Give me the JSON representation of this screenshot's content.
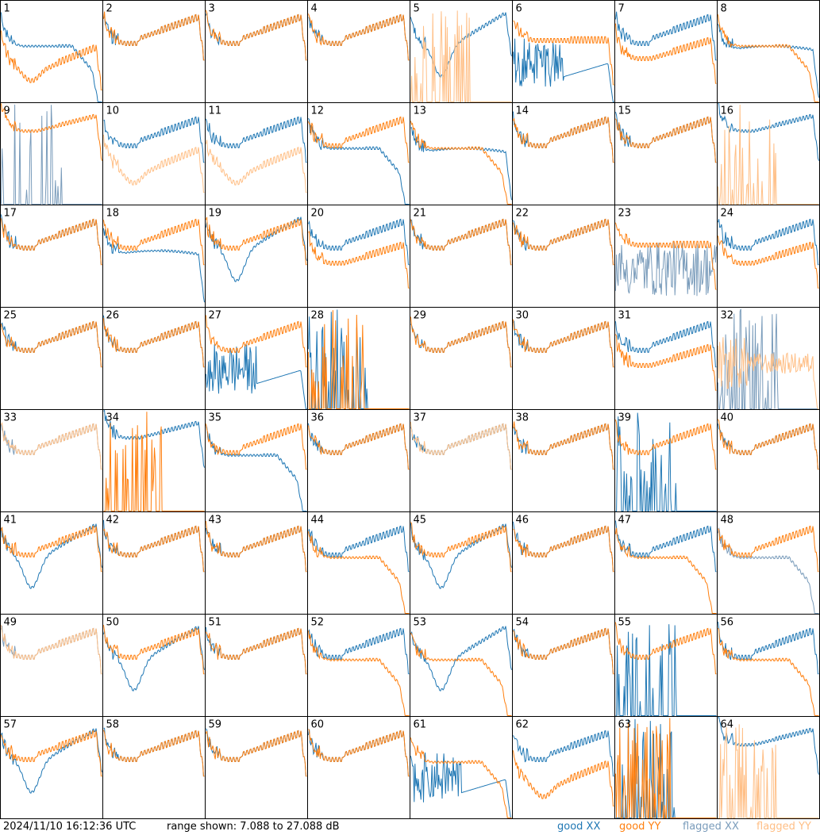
{
  "chart_data": {
    "type": "line",
    "panels": [
      {
        "label": "1",
        "xx": "good",
        "yy": "good",
        "xx_shape": "droop",
        "yy_shape": "low_dip"
      },
      {
        "label": "2",
        "xx": "good",
        "yy": "good",
        "xx_shape": "normal",
        "yy_shape": "normal"
      },
      {
        "label": "3",
        "xx": "good",
        "yy": "good",
        "xx_shape": "normal",
        "yy_shape": "normal"
      },
      {
        "label": "4",
        "xx": "good",
        "yy": "good",
        "xx_shape": "normal",
        "yy_shape": "normal"
      },
      {
        "label": "5",
        "xx": "good",
        "yy": "flagged",
        "xx_shape": "dip",
        "yy_shape": "spikes_low"
      },
      {
        "label": "6",
        "xx": "good",
        "yy": "good",
        "xx_shape": "noisy_low",
        "yy_shape": "high_flat"
      },
      {
        "label": "7",
        "xx": "good",
        "yy": "good",
        "xx_shape": "normal",
        "yy_shape": "low"
      },
      {
        "label": "8",
        "xx": "good",
        "yy": "good",
        "xx_shape": "flat",
        "yy_shape": "droop"
      },
      {
        "label": "9",
        "xx": "flagged",
        "yy": "good",
        "xx_shape": "spikes_low",
        "yy_shape": "high"
      },
      {
        "label": "10",
        "xx": "good",
        "yy": "flagged",
        "xx_shape": "normal",
        "yy_shape": "low_dip"
      },
      {
        "label": "11",
        "xx": "good",
        "yy": "flagged",
        "xx_shape": "normal",
        "yy_shape": "low_dip"
      },
      {
        "label": "12",
        "xx": "good",
        "yy": "good",
        "xx_shape": "droop",
        "yy_shape": "normal"
      },
      {
        "label": "13",
        "xx": "good",
        "yy": "good",
        "xx_shape": "flat",
        "yy_shape": "droop"
      },
      {
        "label": "14",
        "xx": "good",
        "yy": "good",
        "xx_shape": "normal",
        "yy_shape": "normal"
      },
      {
        "label": "15",
        "xx": "good",
        "yy": "good",
        "xx_shape": "normal",
        "yy_shape": "normal"
      },
      {
        "label": "16",
        "xx": "good",
        "yy": "flagged",
        "xx_shape": "high",
        "yy_shape": "spikes_low"
      },
      {
        "label": "17",
        "xx": "good",
        "yy": "good",
        "xx_shape": "normal",
        "yy_shape": "normal"
      },
      {
        "label": "18",
        "xx": "good",
        "yy": "good",
        "xx_shape": "flat",
        "yy_shape": "normal"
      },
      {
        "label": "19",
        "xx": "good",
        "yy": "good",
        "xx_shape": "dip",
        "yy_shape": "normal"
      },
      {
        "label": "20",
        "xx": "good",
        "yy": "good",
        "xx_shape": "normal",
        "yy_shape": "low"
      },
      {
        "label": "21",
        "xx": "good",
        "yy": "good",
        "xx_shape": "normal",
        "yy_shape": "normal"
      },
      {
        "label": "22",
        "xx": "good",
        "yy": "good",
        "xx_shape": "normal",
        "yy_shape": "normal"
      },
      {
        "label": "23",
        "xx": "flagged",
        "yy": "good",
        "xx_shape": "noisy_full",
        "yy_shape": "high_flat"
      },
      {
        "label": "24",
        "xx": "good",
        "yy": "good",
        "xx_shape": "normal",
        "yy_shape": "low"
      },
      {
        "label": "25",
        "xx": "good",
        "yy": "good",
        "xx_shape": "normal",
        "yy_shape": "normal"
      },
      {
        "label": "26",
        "xx": "good",
        "yy": "good",
        "xx_shape": "normal",
        "yy_shape": "normal"
      },
      {
        "label": "27",
        "xx": "good",
        "yy": "good",
        "xx_shape": "noisy_low",
        "yy_shape": "normal"
      },
      {
        "label": "28",
        "xx": "good",
        "yy": "good",
        "xx_shape": "spikes_low",
        "yy_shape": "spikes_low"
      },
      {
        "label": "29",
        "xx": "good",
        "yy": "good",
        "xx_shape": "normal",
        "yy_shape": "normal"
      },
      {
        "label": "30",
        "xx": "good",
        "yy": "good",
        "xx_shape": "normal",
        "yy_shape": "normal"
      },
      {
        "label": "31",
        "xx": "good",
        "yy": "good",
        "xx_shape": "normal",
        "yy_shape": "low"
      },
      {
        "label": "32",
        "xx": "flagged",
        "yy": "flagged",
        "xx_shape": "spikes_low",
        "yy_shape": "noisy_mid"
      },
      {
        "label": "33",
        "xx": "flagged",
        "yy": "flagged",
        "xx_shape": "normal",
        "yy_shape": "normal"
      },
      {
        "label": "34",
        "xx": "good",
        "yy": "good",
        "xx_shape": "high",
        "yy_shape": "spikes_low"
      },
      {
        "label": "35",
        "xx": "good",
        "yy": "good",
        "xx_shape": "droop",
        "yy_shape": "normal"
      },
      {
        "label": "36",
        "xx": "good",
        "yy": "good",
        "xx_shape": "normal",
        "yy_shape": "normal"
      },
      {
        "label": "37",
        "xx": "good",
        "yy": "flagged",
        "xx_shape": "normal",
        "yy_shape": "normal"
      },
      {
        "label": "38",
        "xx": "good",
        "yy": "good",
        "xx_shape": "normal",
        "yy_shape": "normal"
      },
      {
        "label": "39",
        "xx": "good",
        "yy": "good",
        "xx_shape": "spikes_low",
        "yy_shape": "normal"
      },
      {
        "label": "40",
        "xx": "good",
        "yy": "good",
        "xx_shape": "normal",
        "yy_shape": "normal"
      },
      {
        "label": "41",
        "xx": "good",
        "yy": "good",
        "xx_shape": "dip",
        "yy_shape": "normal"
      },
      {
        "label": "42",
        "xx": "good",
        "yy": "good",
        "xx_shape": "normal",
        "yy_shape": "normal"
      },
      {
        "label": "43",
        "xx": "good",
        "yy": "good",
        "xx_shape": "normal",
        "yy_shape": "normal"
      },
      {
        "label": "44",
        "xx": "good",
        "yy": "good",
        "xx_shape": "normal",
        "yy_shape": "droop"
      },
      {
        "label": "45",
        "xx": "good",
        "yy": "good",
        "xx_shape": "dip",
        "yy_shape": "normal"
      },
      {
        "label": "46",
        "xx": "good",
        "yy": "good",
        "xx_shape": "normal",
        "yy_shape": "normal"
      },
      {
        "label": "47",
        "xx": "good",
        "yy": "good",
        "xx_shape": "normal",
        "yy_shape": "droop"
      },
      {
        "label": "48",
        "xx": "flagged",
        "yy": "good",
        "xx_shape": "droop",
        "yy_shape": "normal"
      },
      {
        "label": "49",
        "xx": "flagged",
        "yy": "flagged",
        "xx_shape": "normal",
        "yy_shape": "normal"
      },
      {
        "label": "50",
        "xx": "good",
        "yy": "good",
        "xx_shape": "dip",
        "yy_shape": "normal"
      },
      {
        "label": "51",
        "xx": "good",
        "yy": "good",
        "xx_shape": "normal",
        "yy_shape": "normal"
      },
      {
        "label": "52",
        "xx": "good",
        "yy": "good",
        "xx_shape": "normal",
        "yy_shape": "droop"
      },
      {
        "label": "53",
        "xx": "good",
        "yy": "good",
        "xx_shape": "dip",
        "yy_shape": "droop"
      },
      {
        "label": "54",
        "xx": "good",
        "yy": "good",
        "xx_shape": "normal",
        "yy_shape": "normal"
      },
      {
        "label": "55",
        "xx": "good",
        "yy": "good",
        "xx_shape": "spikes_low",
        "yy_shape": "normal"
      },
      {
        "label": "56",
        "xx": "good",
        "yy": "good",
        "xx_shape": "normal",
        "yy_shape": "droop"
      },
      {
        "label": "57",
        "xx": "good",
        "yy": "good",
        "xx_shape": "dip",
        "yy_shape": "normal"
      },
      {
        "label": "58",
        "xx": "good",
        "yy": "good",
        "xx_shape": "normal",
        "yy_shape": "normal"
      },
      {
        "label": "59",
        "xx": "good",
        "yy": "good",
        "xx_shape": "normal",
        "yy_shape": "normal"
      },
      {
        "label": "60",
        "xx": "good",
        "yy": "good",
        "xx_shape": "normal",
        "yy_shape": "normal"
      },
      {
        "label": "61",
        "xx": "good",
        "yy": "good",
        "xx_shape": "noisy_low",
        "yy_shape": "droop"
      },
      {
        "label": "62",
        "xx": "good",
        "yy": "good",
        "xx_shape": "normal",
        "yy_shape": "low_dip"
      },
      {
        "label": "63",
        "xx": "good",
        "yy": "good",
        "xx_shape": "spikes_low",
        "yy_shape": "spikes_low"
      },
      {
        "label": "64",
        "xx": "good",
        "yy": "flagged",
        "xx_shape": "high",
        "yy_shape": "spikes_low"
      }
    ],
    "grid": {
      "rows": 8,
      "cols": 8
    },
    "legend_placement": "bottom-right",
    "colors": {
      "good_xx": "#1f77b4",
      "good_yy": "#ff7f0e",
      "flagged_xx": "#7a9cbb",
      "flagged_yy": "#ffbf86"
    }
  },
  "footer": {
    "timestamp": "2024/11/10 16:12:36 UTC",
    "range_text": "range shown: 7.088 to 27.088 dB",
    "legend": {
      "good_xx": "good XX",
      "good_yy": "good YY",
      "flagged_xx": "flagged XX",
      "flagged_yy": "flagged YY"
    }
  }
}
